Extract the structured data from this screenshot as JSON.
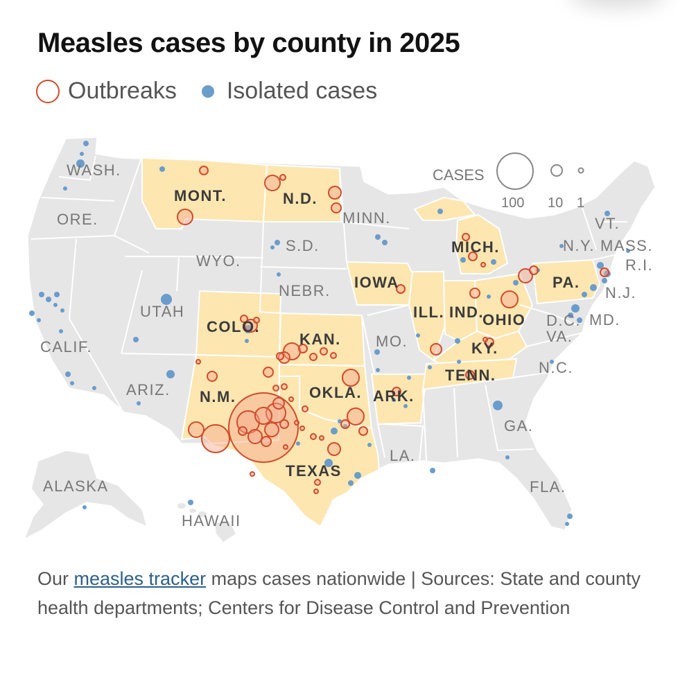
{
  "title": "Measles cases by county in 2025",
  "legend": {
    "outbreaks": "Outbreaks",
    "isolated": "Isolated cases"
  },
  "size_legend": {
    "heading": "CASES",
    "values": [
      "100",
      "10",
      "1"
    ]
  },
  "colors": {
    "outbreak": "#d24a2a",
    "isolated": "#6a9ccc",
    "highlight_state": "#fde6b0",
    "other_state": "#e6e6e6",
    "state_border": "#ffffff"
  },
  "caption": {
    "prefix": "Our ",
    "link": "measles tracker",
    "suffix": " maps cases nationwide | Sources: State and county health departments; Centers for Disease Control and Prevention"
  },
  "labels": {
    "wash": "WASH.",
    "ore": "ORE.",
    "calif": "CALIF.",
    "mont": "MONT.",
    "nd": "N.D.",
    "minn": "MINN.",
    "sd": "S.D.",
    "wyo": "WYO.",
    "utah": "UTAH",
    "nebr": "NEBR.",
    "colo": "COLO.",
    "kan": "KAN.",
    "iowa": "IOWA",
    "ill": "ILL.",
    "ind": "IND.",
    "ohio": "OHIO",
    "mich": "MICH.",
    "pa": "PA.",
    "vt": "VT.",
    "ny": "N.Y.",
    "mass": "MASS.",
    "ri": "R.I.",
    "nj": "N.J.",
    "dc": "D.C.",
    "md": "MD.",
    "va": "VA.",
    "ky": "KY.",
    "tenn": "TENN.",
    "nc": "N.C.",
    "mo": "MO.",
    "okla": "OKLA.",
    "ark": "ARK.",
    "nm": "N.M.",
    "ariz": "ARIZ.",
    "texas": "TEXAS",
    "la": "LA.",
    "ga": "GA.",
    "fla": "FLA.",
    "alaska": "ALASKA",
    "hawaii": "HAWAII"
  },
  "outbreak_counties": [
    {
      "state": "Mont.",
      "cases": 2
    },
    {
      "state": "Mont.",
      "cases": 8
    },
    {
      "state": "N.D.",
      "cases": 6
    },
    {
      "state": "N.D.",
      "cases": 5
    },
    {
      "state": "N.D.",
      "cases": 4
    },
    {
      "state": "N.D.",
      "cases": 1
    },
    {
      "state": "Colo.",
      "cases": 3
    },
    {
      "state": "Colo.",
      "cases": 2
    },
    {
      "state": "Colo.",
      "cases": 2
    },
    {
      "state": "Kan.",
      "cases": 10
    },
    {
      "state": "Kan.",
      "cases": 8
    },
    {
      "state": "Kan.",
      "cases": 6
    },
    {
      "state": "Kan.",
      "cases": 4
    },
    {
      "state": "Kan.",
      "cases": 3
    },
    {
      "state": "Okla.",
      "cases": 10
    },
    {
      "state": "Okla.",
      "cases": 2
    },
    {
      "state": "Ark.",
      "cases": 2
    },
    {
      "state": "N.M.",
      "cases": 8
    },
    {
      "state": "N.M.",
      "cases": 2
    },
    {
      "state": "N.M.",
      "cases": 2
    },
    {
      "state": "Texas",
      "cases": 400
    },
    {
      "state": "Texas",
      "cases": 100
    },
    {
      "state": "Texas",
      "cases": 40
    },
    {
      "state": "Texas",
      "cases": 25
    },
    {
      "state": "Texas",
      "cases": 15
    },
    {
      "state": "Texas",
      "cases": 12
    },
    {
      "state": "Texas",
      "cases": 10
    },
    {
      "state": "Texas",
      "cases": 6
    },
    {
      "state": "Texas",
      "cases": 5
    },
    {
      "state": "Texas",
      "cases": 3
    },
    {
      "state": "Texas",
      "cases": 2
    },
    {
      "state": "Texas",
      "cases": 2
    },
    {
      "state": "Texas",
      "cases": 1
    },
    {
      "state": "Texas",
      "cases": 1
    },
    {
      "state": "Texas",
      "cases": 1
    },
    {
      "state": "Iowa",
      "cases": 2
    },
    {
      "state": "Ill.",
      "cases": 3
    },
    {
      "state": "Ind.",
      "cases": 2
    },
    {
      "state": "Ind.",
      "cases": 2
    },
    {
      "state": "Ohio",
      "cases": 10
    },
    {
      "state": "Ohio",
      "cases": 3
    },
    {
      "state": "Mich.",
      "cases": 2
    },
    {
      "state": "Mich.",
      "cases": 2
    },
    {
      "state": "Mich.",
      "cases": 1
    },
    {
      "state": "Ky.",
      "cases": 2
    },
    {
      "state": "Ky.",
      "cases": 1
    },
    {
      "state": "Tenn.",
      "cases": 2
    },
    {
      "state": "Pa.",
      "cases": 5
    },
    {
      "state": "Pa.",
      "cases": 3
    },
    {
      "state": "N.J.",
      "cases": 3
    }
  ]
}
